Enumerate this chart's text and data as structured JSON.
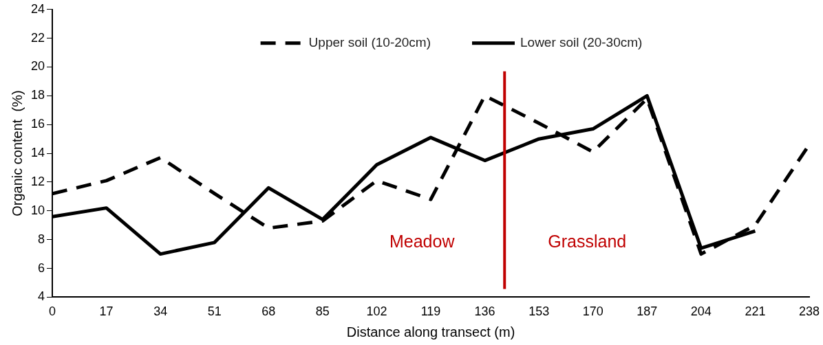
{
  "chart_data": {
    "type": "line",
    "xlabel": "Distance along transect (m)",
    "ylabel": "Organic content  (%)",
    "x": [
      0,
      17,
      34,
      51,
      68,
      85,
      102,
      119,
      136,
      153,
      170,
      187,
      204,
      221,
      238
    ],
    "xlim": [
      0,
      238
    ],
    "xticks": [
      0,
      17,
      34,
      51,
      68,
      85,
      102,
      119,
      136,
      153,
      170,
      187,
      204,
      221,
      238
    ],
    "ylim": [
      4,
      24
    ],
    "yticks": [
      4,
      6,
      8,
      10,
      12,
      14,
      16,
      18,
      20,
      22,
      24
    ],
    "grid": false,
    "legend": "top",
    "marker": "none",
    "series": [
      {
        "name": "Upper soil (10-20cm)",
        "color": "#000000",
        "line_style": "dashed",
        "values": [
          11.2,
          12.1,
          13.7,
          11.2,
          8.8,
          9.3,
          12.1,
          10.8,
          18.0,
          16.1,
          14.1,
          17.8,
          7.0,
          9.0,
          14.6
        ]
      },
      {
        "name": "Lower soil (20-30cm)",
        "color": "#000000",
        "line_style": "solid",
        "values": [
          9.6,
          10.2,
          7.0,
          7.8,
          11.6,
          9.4,
          13.2,
          15.1,
          13.5,
          15.0,
          15.7,
          18.0,
          7.4,
          8.6,
          null
        ]
      }
    ],
    "ref_lines": [
      {
        "axis": "x",
        "value": 142.2,
        "color": "#c00000"
      }
    ],
    "annotations": [
      "Meadow",
      "Grassland"
    ]
  }
}
